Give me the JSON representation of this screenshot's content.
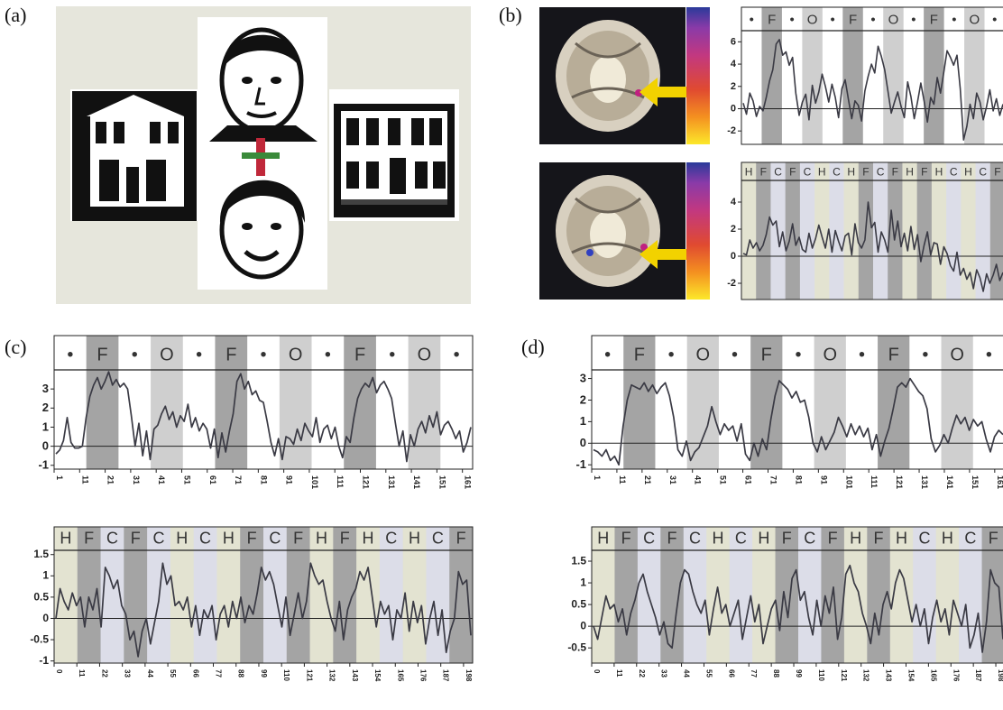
{
  "panels": {
    "a": "(a)",
    "b": "(b)",
    "c": "(c)",
    "d": "(d)"
  },
  "colors": {
    "face_block": "#a4a4a4",
    "object_block": "#cfcfcf",
    "house_block": "#e3e3d1",
    "chair_block": "#dcdde8",
    "fixation_block": "#ffffff",
    "trace": "#3a3a44",
    "arrow": "#f2d200"
  },
  "block_labels": {
    "fo": [
      "•",
      "F",
      "•",
      "O",
      "•",
      "F",
      "•",
      "O",
      "•",
      "F",
      "•",
      "O",
      "•"
    ],
    "hfc": [
      "H",
      "F",
      "C",
      "F",
      "C",
      "H",
      "C",
      "H",
      "F",
      "C",
      "F",
      "H",
      "F",
      "H",
      "C",
      "H",
      "C",
      "F"
    ]
  },
  "chart_data": [
    {
      "id": "b-top",
      "type": "line",
      "block_sequence": [
        "•",
        "F",
        "•",
        "O",
        "•",
        "F",
        "•",
        "O",
        "•",
        "F",
        "•",
        "O",
        "•"
      ],
      "y_ticks": [
        "6",
        "4",
        "2",
        "0",
        "-2"
      ],
      "ylim": [
        -3.2,
        7
      ],
      "x_ticks": [],
      "y": [
        0.5,
        -0.5,
        1.4,
        0.7,
        -0.7,
        0.2,
        -0.2,
        1.0,
        2.5,
        3.5,
        5.8,
        6.2,
        4.8,
        5.1,
        3.9,
        4.6,
        1.4,
        -0.6,
        0.6,
        1.3,
        -1.0,
        2.1,
        0.5,
        1.5,
        3.1,
        2.0,
        0.6,
        2.2,
        1.0,
        -0.8,
        1.8,
        2.6,
        0.8,
        -0.9,
        0.7,
        0.3,
        -1.1,
        1.6,
        2.9,
        4.0,
        3.2,
        5.6,
        4.7,
        3.5,
        1.6,
        -0.4,
        0.6,
        1.5,
        0.2,
        -0.8,
        2.4,
        1.1,
        -0.9,
        0.6,
        2.3,
        0.7,
        -1.2,
        1.0,
        0.4,
        2.8,
        1.4,
        3.3,
        5.2,
        4.6,
        3.9,
        4.8,
        1.8,
        -2.8,
        -1.6,
        0.4,
        -0.9,
        1.4,
        0.6,
        -1.0,
        0.2,
        1.7,
        -0.2,
        0.9,
        -0.6,
        0.4
      ]
    },
    {
      "id": "b-bottom",
      "type": "line",
      "block_sequence": [
        "H",
        "F",
        "C",
        "F",
        "C",
        "H",
        "C",
        "H",
        "F",
        "C",
        "F",
        "H",
        "F",
        "H",
        "C",
        "H",
        "C",
        "F"
      ],
      "y_ticks": [
        "4",
        "2",
        "0",
        "-2"
      ],
      "ylim": [
        -3.2,
        5.6
      ],
      "x_ticks": [],
      "y": [
        0.2,
        0.1,
        1.2,
        0.6,
        1.0,
        0.4,
        0.8,
        1.6,
        2.9,
        2.3,
        2.6,
        0.7,
        1.8,
        0.4,
        1.1,
        2.4,
        0.8,
        1.4,
        0.5,
        0.3,
        1.7,
        0.6,
        1.3,
        2.3,
        1.4,
        0.6,
        2.0,
        0.3,
        1.9,
        1.1,
        0.4,
        1.5,
        1.7,
        0.1,
        2.4,
        1.0,
        0.6,
        1.2,
        4.0,
        2.1,
        2.5,
        0.3,
        1.8,
        1.2,
        0.3,
        3.4,
        1.2,
        2.6,
        0.7,
        1.7,
        0.4,
        2.2,
        0.5,
        1.6,
        -0.4,
        0.8,
        1.8,
        0.1,
        1.0,
        0.9,
        -0.6,
        0.7,
        0.2,
        -0.7,
        -1.1,
        0.3,
        -1.4,
        -0.9,
        -1.7,
        -1.2,
        -2.4,
        -1.0,
        -1.6,
        -2.6,
        -1.3,
        -2.0,
        -1.4,
        -0.6,
        -1.8,
        -1.2
      ]
    },
    {
      "id": "c-top",
      "type": "line",
      "block_sequence": [
        "•",
        "F",
        "•",
        "O",
        "•",
        "F",
        "•",
        "O",
        "•",
        "F",
        "•",
        "O",
        "•"
      ],
      "y_ticks": [
        "3",
        "2",
        "1",
        "0",
        "-1"
      ],
      "ylim": [
        -1.2,
        4.0
      ],
      "x_ticks": [
        "1",
        "11",
        "21",
        "31",
        "41",
        "51",
        "61",
        "71",
        "81",
        "91",
        "101",
        "111",
        "121",
        "131",
        "141",
        "151",
        "161"
      ],
      "y": [
        -0.4,
        -0.2,
        0.3,
        1.5,
        0.2,
        -0.1,
        -0.1,
        0.0,
        1.5,
        2.6,
        3.2,
        3.6,
        3.0,
        3.4,
        3.9,
        3.2,
        3.5,
        3.1,
        3.3,
        3.0,
        1.6,
        0.0,
        1.2,
        -0.5,
        0.8,
        -0.7,
        0.9,
        1.1,
        1.7,
        2.1,
        1.4,
        1.8,
        1.0,
        1.6,
        1.3,
        2.2,
        1.0,
        1.5,
        0.8,
        1.2,
        0.9,
        -0.1,
        0.9,
        -0.6,
        0.7,
        -0.3,
        0.8,
        1.7,
        3.4,
        3.8,
        3.0,
        3.4,
        2.7,
        2.9,
        2.4,
        2.3,
        1.3,
        0.2,
        -0.5,
        0.4,
        -0.7,
        0.5,
        0.4,
        0.1,
        0.9,
        0.3,
        1.2,
        0.8,
        0.5,
        1.5,
        0.2,
        0.9,
        1.1,
        0.4,
        1.0,
        0.0,
        -0.6,
        0.5,
        0.2,
        1.5,
        2.5,
        3.0,
        3.3,
        3.1,
        3.6,
        2.8,
        3.2,
        3.4,
        3.0,
        2.5,
        1.2,
        0.0,
        0.8,
        -0.8,
        0.6,
        0.0,
        0.9,
        1.3,
        0.7,
        1.6,
        1.0,
        1.8,
        0.6,
        1.1,
        1.3,
        0.9,
        0.4,
        0.8,
        -0.3,
        0.2,
        1.0
      ]
    },
    {
      "id": "c-bottom",
      "type": "line",
      "block_sequence": [
        "H",
        "F",
        "C",
        "F",
        "C",
        "H",
        "C",
        "H",
        "F",
        "C",
        "F",
        "H",
        "F",
        "H",
        "C",
        "H",
        "C",
        "F"
      ],
      "y_ticks": [
        "1.5",
        "1",
        "0.5",
        "0",
        "-0.5",
        "-1"
      ],
      "ylim": [
        -1.05,
        1.6
      ],
      "x_ticks": [
        "0",
        "11",
        "22",
        "33",
        "44",
        "55",
        "66",
        "77",
        "88",
        "99",
        "110",
        "121",
        "132",
        "143",
        "154",
        "165",
        "176",
        "187",
        "198"
      ],
      "y": [
        0.0,
        0.7,
        0.4,
        0.2,
        0.6,
        0.3,
        0.5,
        -0.2,
        0.5,
        0.2,
        0.7,
        -0.2,
        1.2,
        1.0,
        0.7,
        0.9,
        0.3,
        0.1,
        -0.5,
        -0.3,
        -0.9,
        -0.3,
        0.0,
        -0.6,
        -0.1,
        0.4,
        1.3,
        0.8,
        1.0,
        0.3,
        0.4,
        0.2,
        0.5,
        -0.2,
        0.3,
        -0.4,
        0.2,
        0.0,
        0.3,
        -0.5,
        0.1,
        0.3,
        -0.2,
        0.4,
        0.0,
        0.5,
        -0.1,
        0.3,
        0.1,
        0.6,
        1.2,
        0.9,
        1.1,
        0.8,
        0.3,
        -0.2,
        0.5,
        -0.4,
        0.1,
        0.6,
        0.0,
        0.4,
        1.3,
        1.0,
        0.8,
        0.9,
        0.4,
        0.0,
        -0.3,
        0.4,
        -0.5,
        0.2,
        0.5,
        0.7,
        1.1,
        0.9,
        1.2,
        0.5,
        -0.2,
        0.4,
        0.1,
        0.3,
        -0.5,
        0.2,
        0.0,
        0.6,
        -0.3,
        0.4,
        -0.1,
        0.3,
        -0.6,
        0.0,
        0.4,
        -0.4,
        0.2,
        -0.8,
        -0.3,
        0.0,
        1.1,
        0.8,
        0.9,
        -0.4
      ]
    },
    {
      "id": "d-top",
      "type": "line",
      "block_sequence": [
        "•",
        "F",
        "•",
        "O",
        "•",
        "F",
        "•",
        "O",
        "•",
        "F",
        "•",
        "O",
        "•"
      ],
      "y_ticks": [
        "3",
        "2",
        "1",
        "0",
        "-1"
      ],
      "ylim": [
        -1.2,
        3.4
      ],
      "x_ticks": [
        "1",
        "11",
        "21",
        "31",
        "41",
        "51",
        "61",
        "71",
        "81",
        "91",
        "101",
        "111",
        "121",
        "131",
        "141",
        "151",
        "161"
      ],
      "y": [
        -0.3,
        -0.4,
        -0.6,
        -0.3,
        -0.8,
        -0.6,
        -1.0,
        0.8,
        2.0,
        2.7,
        2.6,
        2.5,
        2.8,
        2.4,
        2.7,
        2.3,
        2.6,
        2.8,
        2.2,
        1.2,
        -0.3,
        -0.6,
        0.1,
        -0.8,
        -0.4,
        -0.2,
        0.3,
        0.8,
        1.7,
        1.0,
        0.4,
        0.9,
        0.6,
        0.8,
        0.1,
        0.9,
        -0.5,
        -0.8,
        0.0,
        -0.6,
        0.2,
        -0.3,
        1.1,
        2.2,
        2.9,
        2.7,
        2.5,
        2.1,
        2.4,
        1.9,
        2.0,
        1.2,
        0.0,
        -0.4,
        0.3,
        -0.3,
        0.1,
        0.5,
        1.2,
        0.8,
        0.3,
        0.9,
        0.4,
        0.8,
        0.3,
        0.7,
        -0.3,
        0.4,
        -0.6,
        0.1,
        0.7,
        1.6,
        2.6,
        2.8,
        2.6,
        3.0,
        2.7,
        2.4,
        2.2,
        1.6,
        0.2,
        -0.4,
        -0.1,
        0.4,
        0.0,
        0.7,
        1.3,
        0.9,
        1.2,
        0.6,
        1.1,
        0.8,
        1.0,
        0.2,
        -0.4,
        0.3,
        0.6,
        0.4
      ]
    },
    {
      "id": "d-bottom",
      "type": "line",
      "block_sequence": [
        "H",
        "F",
        "C",
        "F",
        "C",
        "H",
        "C",
        "H",
        "F",
        "C",
        "F",
        "H",
        "F",
        "H",
        "C",
        "H",
        "C",
        "F"
      ],
      "y_ticks": [
        "1.5",
        "1",
        "0.5",
        "0",
        "-0.5"
      ],
      "ylim": [
        -0.85,
        1.75
      ],
      "x_ticks": [
        "0",
        "11",
        "22",
        "33",
        "44",
        "55",
        "66",
        "77",
        "88",
        "99",
        "110",
        "121",
        "132",
        "143",
        "154",
        "165",
        "176",
        "187",
        "198"
      ],
      "y": [
        0.0,
        -0.3,
        0.2,
        0.7,
        0.4,
        0.5,
        0.1,
        0.4,
        -0.2,
        0.3,
        0.6,
        1.0,
        1.2,
        0.8,
        0.5,
        0.2,
        -0.2,
        0.1,
        -0.4,
        -0.5,
        0.3,
        1.0,
        1.3,
        1.2,
        0.8,
        0.5,
        0.3,
        0.6,
        -0.2,
        0.4,
        0.9,
        0.3,
        0.5,
        0.0,
        0.3,
        0.6,
        -0.3,
        0.2,
        0.7,
        0.1,
        0.5,
        -0.4,
        0.0,
        0.4,
        0.6,
        -0.1,
        0.8,
        0.2,
        1.1,
        1.3,
        0.6,
        0.8,
        0.2,
        -0.2,
        0.6,
        0.0,
        0.7,
        0.3,
        0.9,
        -0.3,
        0.2,
        1.2,
        1.4,
        1.0,
        0.8,
        0.3,
        0.0,
        -0.4,
        0.3,
        -0.2,
        0.5,
        0.8,
        0.4,
        1.0,
        1.3,
        1.1,
        0.6,
        0.1,
        0.5,
        0.0,
        0.4,
        -0.4,
        0.2,
        0.6,
        0.1,
        0.4,
        -0.2,
        0.6,
        0.3,
        0.0,
        0.5,
        -0.5,
        -0.2,
        0.3,
        -0.6,
        0.1,
        1.3,
        1.0,
        0.9,
        -0.3
      ]
    }
  ]
}
